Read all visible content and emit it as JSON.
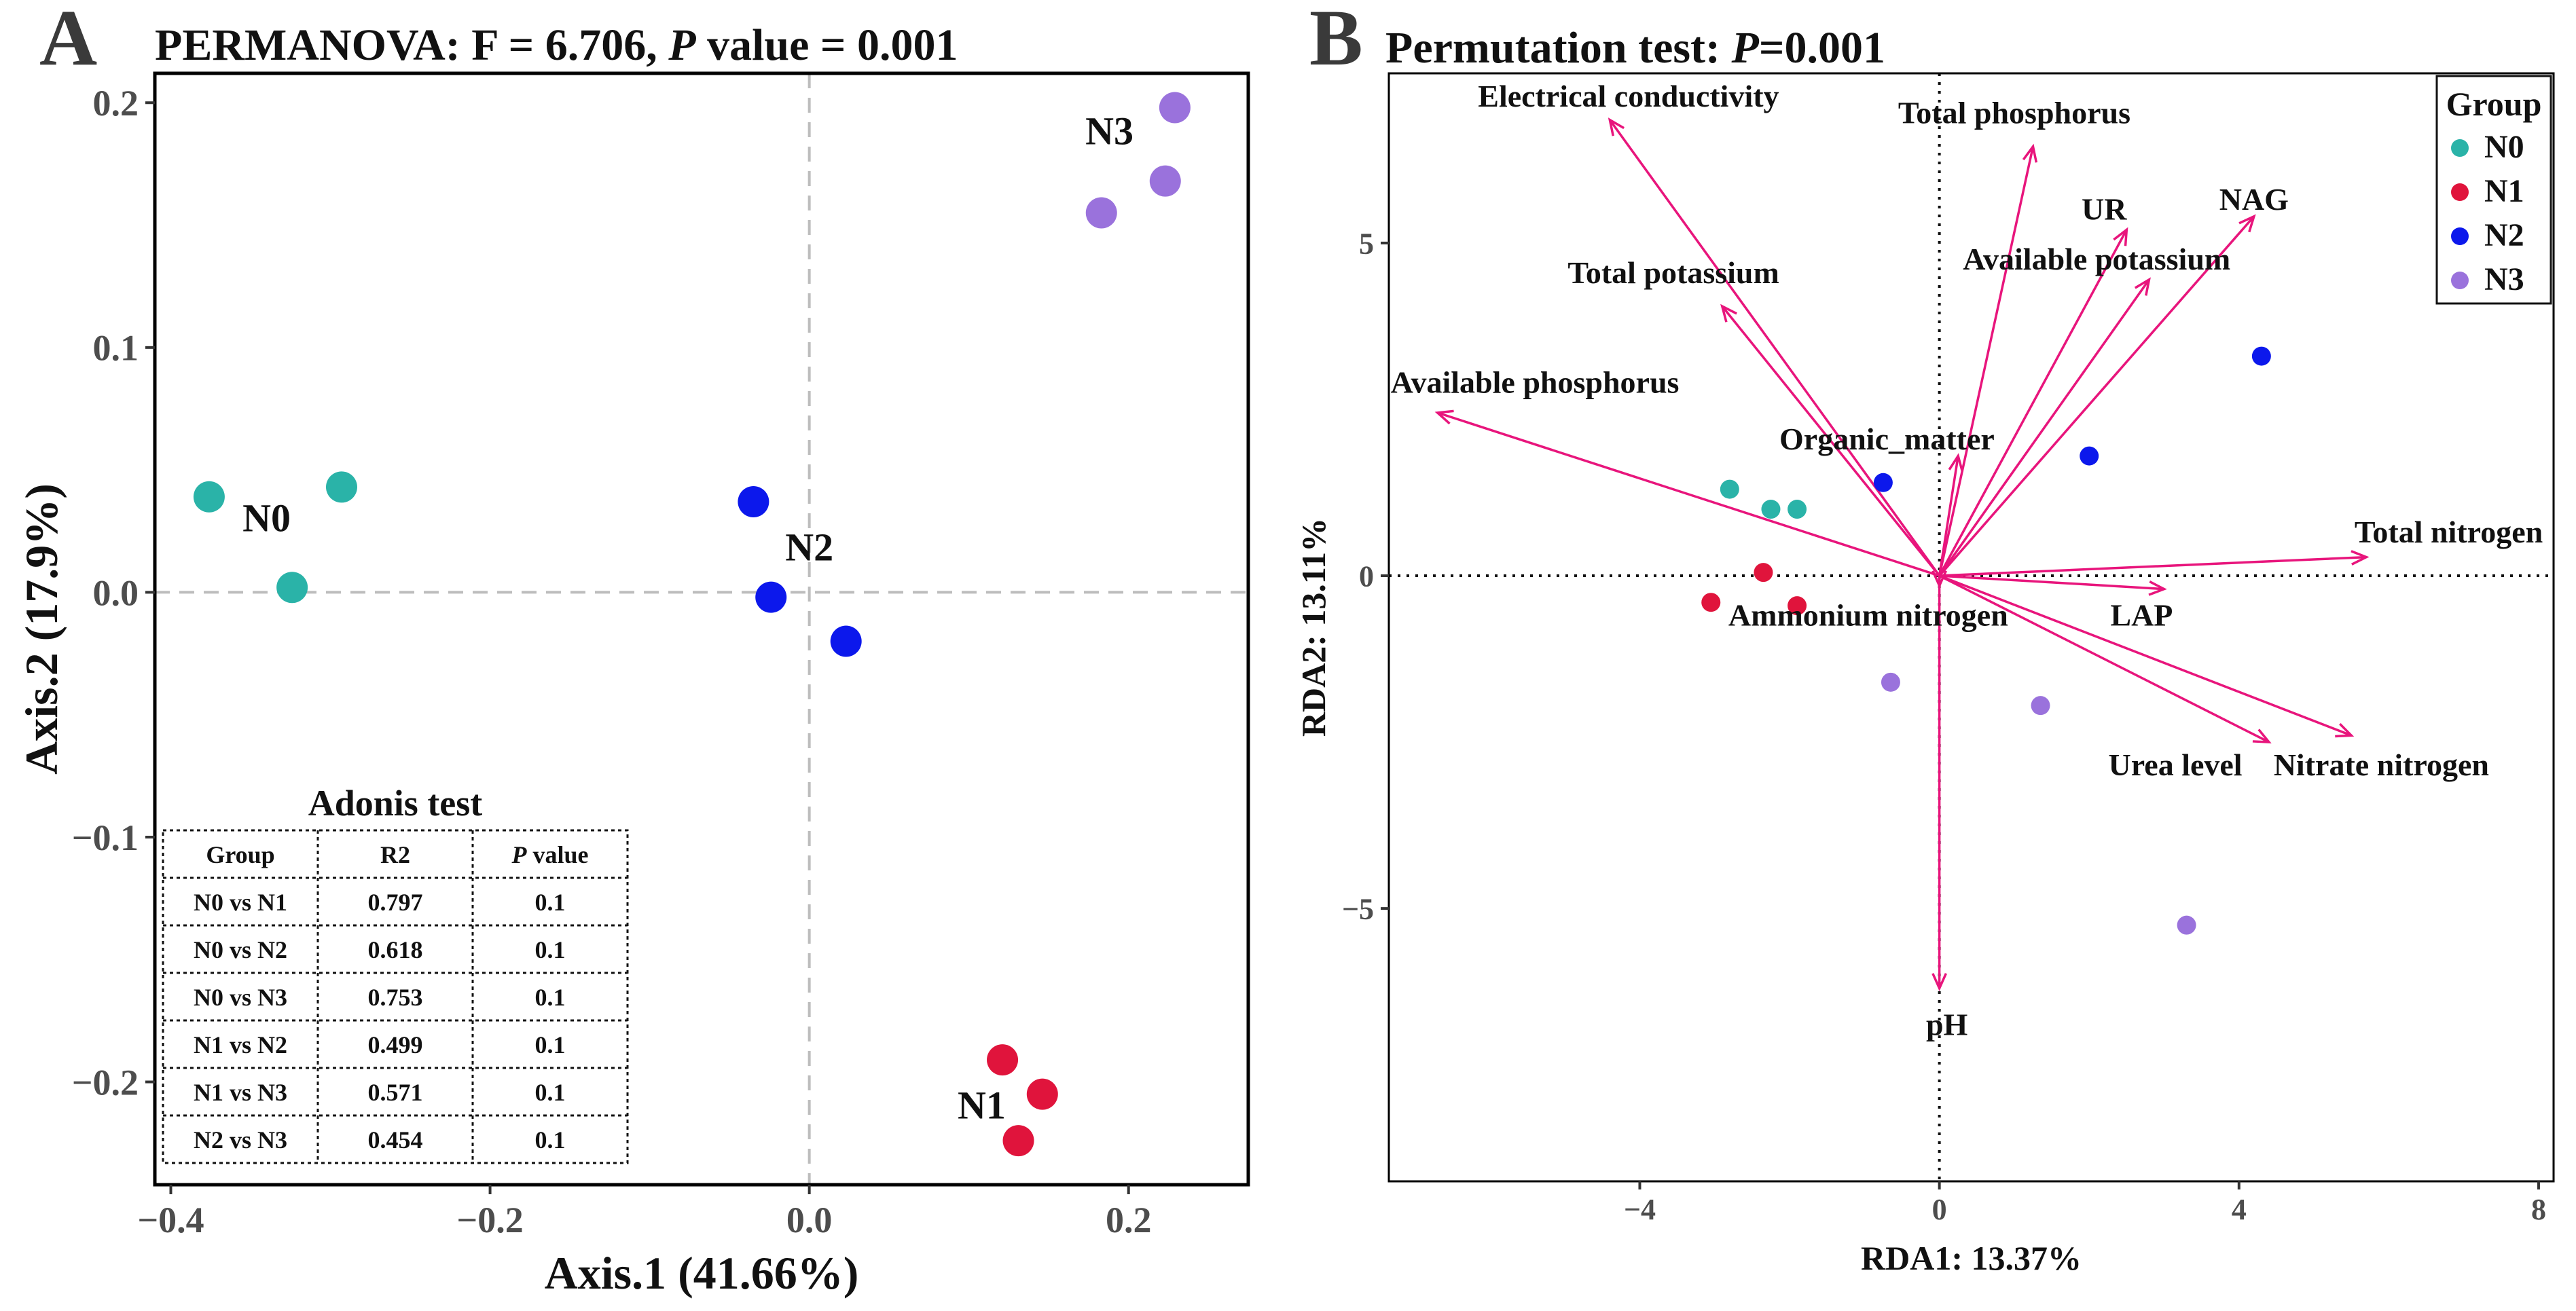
{
  "chart_data": [
    {
      "panel_letter": "A",
      "type": "scatter",
      "title": "PERMANOVA: F = 6.706,  P value = 0.001",
      "title_parts": {
        "prefix": "PERMANOVA: F = 6.706,  ",
        "p": "P",
        "suffix": " value = 0.001"
      },
      "xlabel": "Axis.1 (41.66%)",
      "ylabel": "Axis.2 (17.9%)",
      "xlim": [
        -0.41,
        0.275
      ],
      "ylim": [
        -0.242,
        0.212
      ],
      "xticks": [
        -0.4,
        -0.2,
        0.0,
        0.2
      ],
      "xtick_labels": [
        "−0.4",
        "−0.2",
        "0.0",
        "0.2"
      ],
      "yticks": [
        -0.2,
        -0.1,
        0.0,
        0.1,
        0.2
      ],
      "ytick_labels": [
        "−0.2",
        "−0.1",
        "0.0",
        "0.1",
        "0.2"
      ],
      "series": [
        {
          "name": "N0",
          "color": "#2ab3a8",
          "points": [
            [
              -0.376,
              0.039
            ],
            [
              -0.293,
              0.043
            ],
            [
              -0.324,
              0.002
            ]
          ]
        },
        {
          "name": "N1",
          "color": "#e0143c",
          "points": [
            [
              0.121,
              -0.191
            ],
            [
              0.146,
              -0.205
            ],
            [
              0.131,
              -0.224
            ]
          ]
        },
        {
          "name": "N2",
          "color": "#0c18ec",
          "points": [
            [
              -0.035,
              0.037
            ],
            [
              -0.024,
              -0.002
            ],
            [
              0.023,
              -0.02
            ]
          ]
        },
        {
          "name": "N3",
          "color": "#9a72dc",
          "points": [
            [
              0.183,
              0.155
            ],
            [
              0.223,
              0.168
            ],
            [
              0.229,
              0.198
            ]
          ]
        }
      ],
      "group_labels": [
        {
          "text": "N0",
          "x": -0.34,
          "y": 0.025
        },
        {
          "text": "N2",
          "x": 0.0,
          "y": 0.013
        },
        {
          "text": "N3",
          "x": 0.188,
          "y": 0.183
        },
        {
          "text": "N1",
          "x": 0.108,
          "y": -0.215
        }
      ],
      "table": {
        "title": "Adonis test",
        "headers": [
          "Group",
          "R2",
          "P value"
        ],
        "rows": [
          [
            "N0 vs N1",
            "0.797",
            "0.1"
          ],
          [
            "N0 vs N2",
            "0.618",
            "0.1"
          ],
          [
            "N0 vs N3",
            "0.753",
            "0.1"
          ],
          [
            "N1 vs N2",
            "0.499",
            "0.1"
          ],
          [
            "N1 vs N3",
            "0.571",
            "0.1"
          ],
          [
            "N2 vs N3",
            "0.454",
            "0.1"
          ]
        ]
      }
    },
    {
      "panel_letter": "B",
      "type": "scatter",
      "title": "Permutation test: P=0.001",
      "title_parts": {
        "prefix": "Permutation test: ",
        "p": "P",
        "suffix": "=0.001"
      },
      "xlabel": "RDA1: 13.37%",
      "ylabel": "RDA2: 13.11%",
      "xlim": [
        -7.35,
        8.2
      ],
      "ylim": [
        -9.1,
        7.55
      ],
      "xticks": [
        -4,
        0,
        4,
        8
      ],
      "xtick_labels": [
        "−4",
        "0",
        "4",
        "8"
      ],
      "yticks": [
        -5,
        0,
        5
      ],
      "ytick_labels": [
        "−5",
        "0",
        "5"
      ],
      "series": [
        {
          "name": "N0",
          "color": "#2ab3a8",
          "points": [
            [
              -2.8,
              1.3
            ],
            [
              -2.25,
              1.0
            ],
            [
              -1.9,
              1.0
            ]
          ]
        },
        {
          "name": "N1",
          "color": "#e0143c",
          "points": [
            [
              -3.05,
              -0.4
            ],
            [
              -2.35,
              0.05
            ],
            [
              -1.9,
              -0.45
            ]
          ]
        },
        {
          "name": "N2",
          "color": "#0c18ec",
          "points": [
            [
              -0.75,
              1.4
            ],
            [
              2.0,
              1.8
            ],
            [
              4.3,
              3.3
            ]
          ]
        },
        {
          "name": "N3",
          "color": "#9a72dc",
          "points": [
            [
              -0.65,
              -1.6
            ],
            [
              1.35,
              -1.95
            ],
            [
              3.3,
              -5.25
            ]
          ]
        }
      ],
      "arrow_color": "#e8157c",
      "arrows": [
        {
          "label": "Electrical conductivity",
          "x": -4.4,
          "y": 6.85,
          "lx": -4.15,
          "ly": 7.05,
          "anchor": "middle"
        },
        {
          "label": "Total phosphorus",
          "x": 1.25,
          "y": 6.45,
          "lx": 1.0,
          "ly": 6.8,
          "anchor": "middle"
        },
        {
          "label": "UR",
          "x": 2.5,
          "y": 5.2,
          "lx": 2.2,
          "ly": 5.35,
          "anchor": "middle"
        },
        {
          "label": "NAG",
          "x": 4.2,
          "y": 5.4,
          "lx": 4.2,
          "ly": 5.5,
          "anchor": "middle"
        },
        {
          "label": "Available potassium",
          "x": 2.8,
          "y": 4.45,
          "lx": 2.1,
          "ly": 4.6,
          "anchor": "middle"
        },
        {
          "label": "Total potassium",
          "x": -2.9,
          "y": 4.05,
          "lx": -3.55,
          "ly": 4.4,
          "anchor": "middle"
        },
        {
          "label": "Available phosphorus",
          "x": -6.7,
          "y": 2.45,
          "lx": -5.4,
          "ly": 2.75,
          "anchor": "middle"
        },
        {
          "label": "Organic_matter",
          "x": 0.25,
          "y": 1.8,
          "lx": -0.7,
          "ly": 1.9,
          "anchor": "middle"
        },
        {
          "label": "Total nitrogen",
          "x": 5.7,
          "y": 0.28,
          "lx": 6.8,
          "ly": 0.5,
          "anchor": "middle"
        },
        {
          "label": "LAP",
          "x": 3.0,
          "y": -0.2,
          "lx": 2.7,
          "ly": -0.75,
          "anchor": "middle"
        },
        {
          "label": "Urea level",
          "x": 4.4,
          "y": -2.5,
          "lx": 3.15,
          "ly": -3.0,
          "anchor": "middle"
        },
        {
          "label": "Nitrate nitrogen",
          "x": 5.5,
          "y": -2.4,
          "lx": 5.9,
          "ly": -3.0,
          "anchor": "middle"
        },
        {
          "label": "Ammonium nitrogen",
          "x": 0.0,
          "y": -0.15,
          "lx": -0.95,
          "ly": -0.75,
          "anchor": "middle"
        },
        {
          "label": "pH",
          "x": 0.0,
          "y": -6.2,
          "lx": 0.1,
          "ly": -6.9,
          "anchor": "middle"
        }
      ],
      "legend": {
        "title": "Group",
        "position": "top-right",
        "items": [
          "N0",
          "N1",
          "N2",
          "N3"
        ]
      }
    }
  ]
}
